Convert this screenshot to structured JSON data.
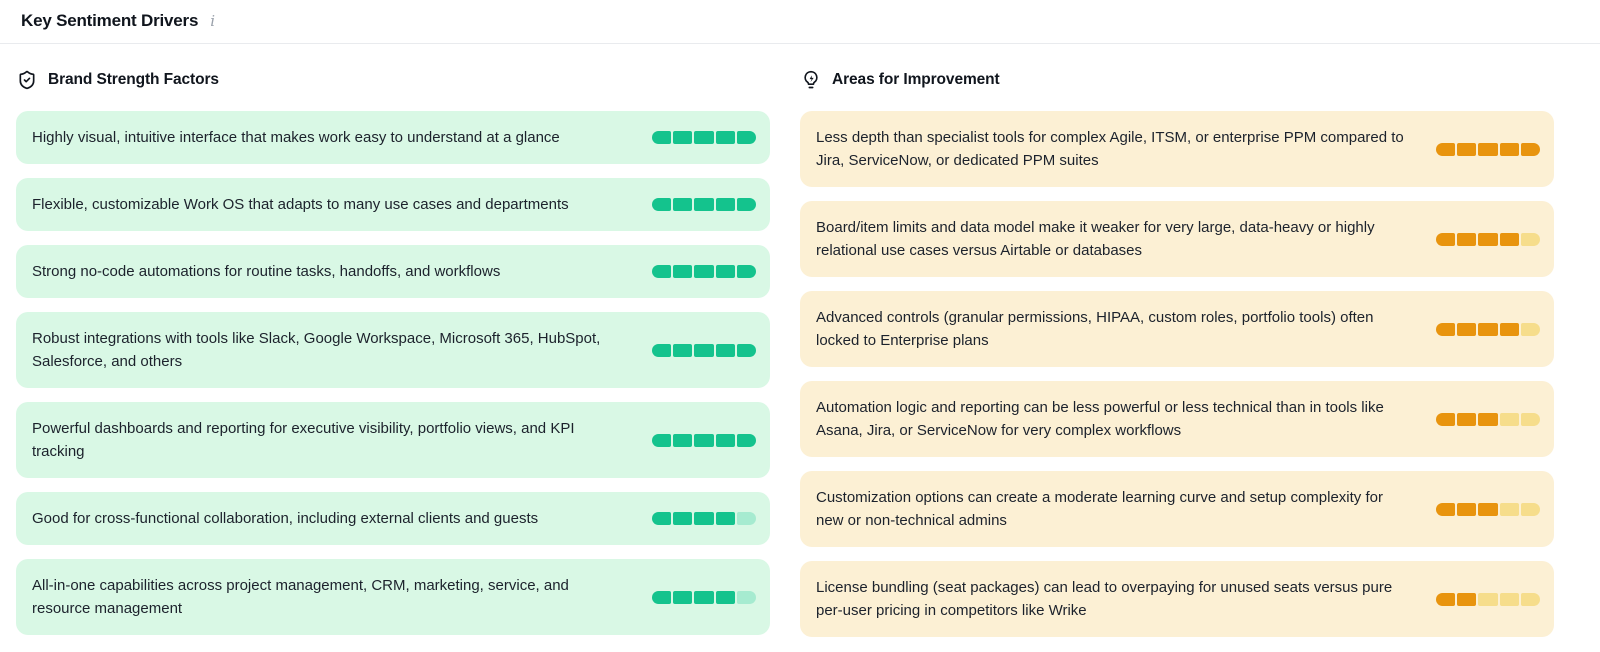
{
  "header": {
    "title": "Key Sentiment Drivers",
    "info_icon": "i"
  },
  "colors": {
    "strength_card_bg": "#d9f8e5",
    "strength_fill": "#14c38d",
    "strength_empty": "#a6ebd0",
    "improvement_card_bg": "#fcf0d4",
    "improvement_fill": "#e8940e",
    "improvement_empty": "#f6dd8b",
    "divider": "#e9ebee",
    "heading_text": "#10151d"
  },
  "score_scale": {
    "max": 5
  },
  "columns": {
    "strengths": {
      "title": "Brand Strength Factors",
      "icon": "shield-check-icon",
      "items": [
        {
          "text": "Highly visual, intuitive interface that makes work easy to understand at a glance",
          "score": 5
        },
        {
          "text": "Flexible, customizable Work OS that adapts to many use cases and departments",
          "score": 5
        },
        {
          "text": "Strong no-code automations for routine tasks, handoffs, and workflows",
          "score": 5
        },
        {
          "text": "Robust integrations with tools like Slack, Google Workspace, Microsoft 365, HubSpot, Salesforce, and others",
          "score": 5
        },
        {
          "text": "Powerful dashboards and reporting for executive visibility, portfolio views, and KPI tracking",
          "score": 5
        },
        {
          "text": "Good for cross-functional collaboration, including external clients and guests",
          "score": 4
        },
        {
          "text": "All-in-one capabilities across project management, CRM, marketing, service, and resource management",
          "score": 4
        }
      ]
    },
    "improvements": {
      "title": "Areas for Improvement",
      "icon": "lightbulb-bolt-icon",
      "items": [
        {
          "text": "Less depth than specialist tools for complex Agile, ITSM, or enterprise PPM compared to Jira, ServiceNow, or dedicated PPM suites",
          "score": 5
        },
        {
          "text": "Board/item limits and data model make it weaker for very large, data-heavy or highly relational use cases versus Airtable or databases",
          "score": 4
        },
        {
          "text": "Advanced controls (granular permissions, HIPAA, custom roles, portfolio tools) often locked to Enterprise plans",
          "score": 4
        },
        {
          "text": "Automation logic and reporting can be less powerful or less technical than in tools like Asana, Jira, or ServiceNow for very complex workflows",
          "score": 3
        },
        {
          "text": "Customization options can create a moderate learning curve and setup complexity for new or non-technical admins",
          "score": 3
        },
        {
          "text": "License bundling (seat packages) can lead to overpaying for unused seats versus pure per-user pricing in competitors like Wrike",
          "score": 2
        }
      ]
    }
  }
}
